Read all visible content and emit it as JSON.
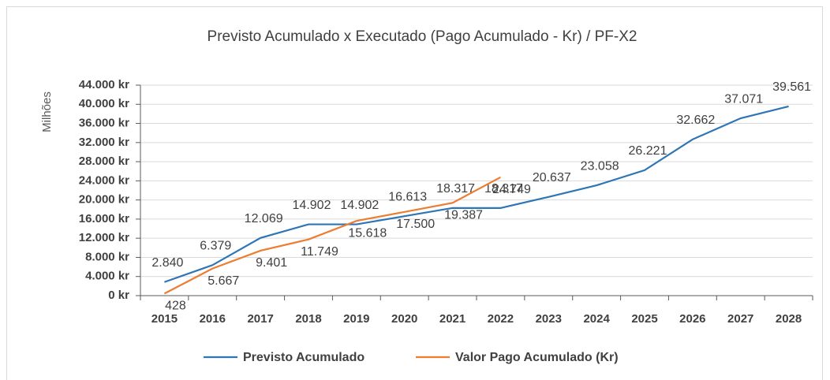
{
  "chart_data": {
    "type": "line",
    "title": "Previsto Acumulado x Executado (Pago Acumulado - Kr) / PF-X2",
    "y_axis_label": "Milhões",
    "categories": [
      "2015",
      "2016",
      "2017",
      "2018",
      "2019",
      "2020",
      "2021",
      "2022",
      "2023",
      "2024",
      "2025",
      "2026",
      "2027",
      "2028"
    ],
    "series": [
      {
        "name": "Previsto Acumulado",
        "color": "#2e75b6",
        "values": [
          2840,
          6379,
          12069,
          14902,
          14902,
          16613,
          18317,
          18317,
          20637,
          23058,
          26221,
          32662,
          37071,
          39561
        ],
        "value_labels": [
          "2.840",
          "6.379",
          "12.069",
          "14.902",
          "14.902",
          "16.613",
          "18.317",
          "18.317",
          "20.637",
          "23.058",
          "26.221",
          "32.662",
          "37.071",
          "39.561"
        ]
      },
      {
        "name": "Valor Pago Acumulado (Kr)",
        "color": "#ed7d31",
        "values": [
          428,
          5667,
          9401,
          11749,
          15618,
          17500,
          19387,
          24749,
          null,
          null,
          null,
          null,
          null,
          null
        ],
        "value_labels": [
          "428",
          "5.667",
          "9.401",
          "11.749",
          "15.618",
          "17.500",
          "19.387",
          "24.749",
          null,
          null,
          null,
          null,
          null,
          null
        ]
      }
    ],
    "ylim": [
      0,
      44000
    ],
    "yticks": [
      {
        "value": 0,
        "label": "0 kr"
      },
      {
        "value": 4000,
        "label": "4.000 kr"
      },
      {
        "value": 8000,
        "label": "8.000 kr"
      },
      {
        "value": 12000,
        "label": "12.000 kr"
      },
      {
        "value": 16000,
        "label": "16.000 kr"
      },
      {
        "value": 20000,
        "label": "20.000 kr"
      },
      {
        "value": 24000,
        "label": "24.000 kr"
      },
      {
        "value": 28000,
        "label": "28.000 kr"
      },
      {
        "value": 32000,
        "label": "32.000 kr"
      },
      {
        "value": 36000,
        "label": "36.000 kr"
      },
      {
        "value": 40000,
        "label": "40.000 kr"
      },
      {
        "value": 44000,
        "label": "44.000 kr"
      }
    ],
    "grid": true,
    "legend": "bottom"
  }
}
